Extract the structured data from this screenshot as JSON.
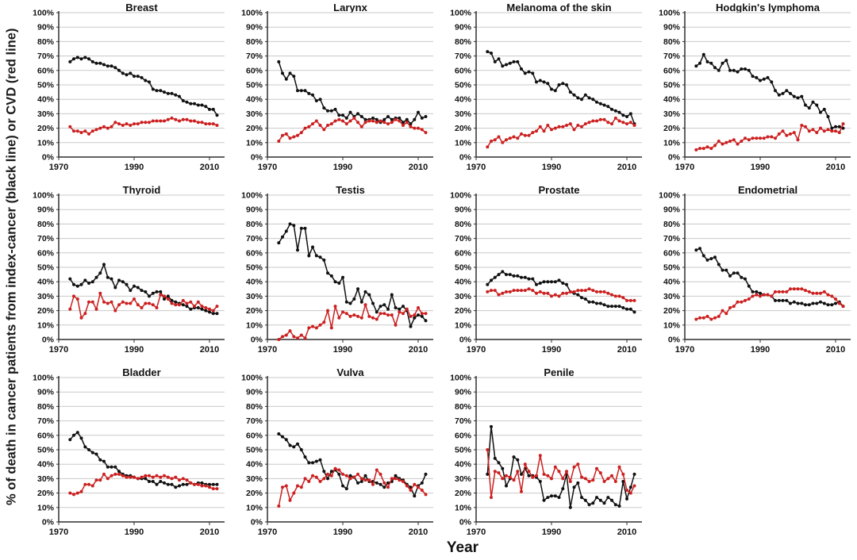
{
  "figure": {
    "ylabel": "% of death in cancer patients from index-cancer (black line) or CVD (red line)",
    "xlabel": "Year",
    "colors": {
      "index_cancer": "#111111",
      "cvd": "#cc2020",
      "grid": "#c9c9c9",
      "axis": "#2e2e2e"
    }
  },
  "axes": {
    "ylim": [
      0,
      100
    ],
    "ytick_step": 10,
    "ytick_labels": [
      "0%",
      "10%",
      "20%",
      "30%",
      "40%",
      "50%",
      "60%",
      "70%",
      "80%",
      "90%",
      "100%"
    ],
    "xlim": [
      1970,
      2014
    ],
    "xticks": [
      1970,
      1990,
      2010
    ],
    "grid": "horizontal"
  },
  "chart_data": [
    {
      "type": "line",
      "title": "Breast",
      "x_start": 1973,
      "x_step": 1,
      "series": [
        {
          "name": "index-cancer (black line)",
          "color": "black",
          "values": [
            66,
            68,
            69,
            68,
            69,
            68,
            66,
            65,
            65,
            64,
            63,
            63,
            62,
            60,
            58,
            57,
            58,
            56,
            56,
            55,
            53,
            52,
            47,
            46,
            46,
            45,
            44,
            44,
            43,
            42,
            39,
            38,
            37,
            37,
            36,
            36,
            35,
            33,
            33,
            29
          ]
        },
        {
          "name": "CVD (red line)",
          "color": "red",
          "values": [
            21,
            18,
            18,
            17,
            18,
            16,
            18,
            19,
            20,
            21,
            20,
            21,
            24,
            23,
            22,
            23,
            22,
            23,
            23,
            24,
            24,
            24,
            25,
            25,
            25,
            25,
            26,
            27,
            26,
            25,
            26,
            26,
            25,
            25,
            24,
            24,
            23,
            23,
            23,
            22
          ]
        }
      ]
    },
    {
      "type": "line",
      "title": "Larynx",
      "x_start": 1973,
      "x_step": 1,
      "series": [
        {
          "name": "index-cancer (black line)",
          "color": "black",
          "values": [
            66,
            58,
            54,
            58,
            56,
            46,
            46,
            46,
            44,
            43,
            39,
            40,
            34,
            32,
            32,
            33,
            29,
            29,
            27,
            31,
            28,
            30,
            28,
            26,
            26,
            27,
            26,
            24,
            26,
            28,
            26,
            27,
            27,
            24,
            26,
            23,
            26,
            31,
            27,
            28
          ]
        },
        {
          "name": "CVD (red line)",
          "color": "red",
          "values": [
            11,
            15,
            16,
            13,
            14,
            15,
            17,
            20,
            21,
            23,
            25,
            22,
            19,
            22,
            23,
            25,
            26,
            25,
            23,
            25,
            27,
            24,
            21,
            24,
            25,
            25,
            24,
            25,
            24,
            23,
            24,
            26,
            25,
            22,
            24,
            21,
            20,
            20,
            19,
            17
          ]
        }
      ]
    },
    {
      "type": "line",
      "title": "Melanoma of the skin",
      "x_start": 1973,
      "x_step": 1,
      "series": [
        {
          "name": "index-cancer (black line)",
          "color": "black",
          "values": [
            73,
            72,
            66,
            68,
            63,
            64,
            65,
            66,
            66,
            61,
            58,
            59,
            58,
            52,
            53,
            52,
            51,
            47,
            46,
            50,
            51,
            50,
            45,
            43,
            41,
            40,
            43,
            41,
            40,
            38,
            37,
            36,
            35,
            33,
            32,
            31,
            29,
            28,
            30,
            23
          ]
        },
        {
          "name": "CVD (red line)",
          "color": "red",
          "values": [
            7,
            11,
            12,
            14,
            10,
            12,
            13,
            14,
            13,
            16,
            15,
            15,
            17,
            18,
            21,
            18,
            22,
            19,
            20,
            21,
            21,
            22,
            23,
            19,
            22,
            21,
            23,
            24,
            25,
            25,
            26,
            26,
            24,
            23,
            27,
            25,
            24,
            23,
            24,
            22
          ]
        }
      ]
    },
    {
      "type": "line",
      "title": "Hodgkin's lymphoma",
      "x_start": 1973,
      "x_step": 1,
      "series": [
        {
          "name": "index-cancer (black line)",
          "color": "black",
          "values": [
            63,
            65,
            71,
            66,
            65,
            62,
            60,
            65,
            67,
            60,
            60,
            59,
            61,
            61,
            60,
            56,
            55,
            53,
            54,
            55,
            52,
            46,
            43,
            44,
            46,
            44,
            42,
            41,
            42,
            36,
            34,
            38,
            36,
            31,
            33,
            28,
            20,
            21,
            21,
            20
          ]
        },
        {
          "name": "CVD (red line)",
          "color": "red",
          "values": [
            5,
            6,
            6,
            7,
            6,
            8,
            11,
            9,
            10,
            11,
            12,
            9,
            11,
            13,
            12,
            13,
            13,
            13,
            13,
            14,
            14,
            13,
            16,
            18,
            15,
            16,
            17,
            12,
            22,
            21,
            18,
            19,
            17,
            20,
            18,
            19,
            18,
            18,
            17,
            23
          ]
        }
      ]
    },
    {
      "type": "line",
      "title": "Thyroid",
      "x_start": 1973,
      "x_step": 1,
      "series": [
        {
          "name": "index-cancer (black line)",
          "color": "black",
          "values": [
            42,
            38,
            37,
            38,
            41,
            39,
            40,
            43,
            46,
            52,
            43,
            42,
            36,
            41,
            40,
            38,
            34,
            37,
            36,
            34,
            33,
            30,
            32,
            33,
            33,
            28,
            30,
            27,
            26,
            25,
            24,
            23,
            21,
            22,
            22,
            21,
            20,
            19,
            18,
            18
          ]
        },
        {
          "name": "CVD (red line)",
          "color": "red",
          "values": [
            21,
            30,
            28,
            15,
            18,
            26,
            26,
            21,
            32,
            26,
            25,
            26,
            20,
            24,
            26,
            25,
            25,
            28,
            24,
            22,
            25,
            25,
            24,
            22,
            31,
            30,
            28,
            25,
            24,
            24,
            27,
            25,
            26,
            23,
            26,
            23,
            22,
            21,
            20,
            23
          ]
        }
      ]
    },
    {
      "type": "line",
      "title": "Testis",
      "x_start": 1973,
      "x_step": 1,
      "series": [
        {
          "name": "index-cancer (black line)",
          "color": "black",
          "values": [
            67,
            71,
            75,
            80,
            79,
            62,
            77,
            77,
            58,
            64,
            58,
            57,
            55,
            46,
            44,
            40,
            39,
            43,
            26,
            25,
            28,
            35,
            26,
            33,
            31,
            25,
            19,
            23,
            24,
            21,
            31,
            22,
            21,
            23,
            20,
            9,
            15,
            17,
            16,
            13
          ]
        },
        {
          "name": "CVD (red line)",
          "color": "red",
          "values": [
            0,
            2,
            3,
            6,
            2,
            1,
            3,
            1,
            8,
            9,
            8,
            10,
            12,
            20,
            8,
            23,
            15,
            19,
            18,
            16,
            17,
            16,
            15,
            24,
            16,
            15,
            14,
            18,
            18,
            17,
            17,
            10,
            19,
            18,
            21,
            16,
            17,
            22,
            18,
            18
          ]
        }
      ]
    },
    {
      "type": "line",
      "title": "Prostate",
      "x_start": 1973,
      "x_step": 1,
      "series": [
        {
          "name": "index-cancer (black line)",
          "color": "black",
          "values": [
            38,
            41,
            43,
            45,
            47,
            45,
            45,
            44,
            44,
            43,
            43,
            42,
            42,
            38,
            39,
            40,
            40,
            40,
            40,
            41,
            39,
            38,
            33,
            32,
            31,
            29,
            28,
            26,
            26,
            25,
            25,
            24,
            23,
            23,
            23,
            23,
            22,
            21,
            21,
            19
          ]
        },
        {
          "name": "CVD (red line)",
          "color": "red",
          "values": [
            33,
            34,
            34,
            31,
            32,
            33,
            33,
            34,
            34,
            34,
            34,
            35,
            34,
            32,
            33,
            32,
            32,
            30,
            31,
            30,
            32,
            32,
            33,
            33,
            34,
            34,
            34,
            35,
            34,
            33,
            33,
            33,
            32,
            31,
            30,
            30,
            29,
            27,
            27,
            27
          ]
        }
      ]
    },
    {
      "type": "line",
      "title": "Endometrial",
      "x_start": 1973,
      "x_step": 1,
      "series": [
        {
          "name": "index-cancer (black line)",
          "color": "black",
          "values": [
            62,
            63,
            58,
            55,
            56,
            57,
            52,
            48,
            48,
            44,
            46,
            46,
            43,
            42,
            37,
            33,
            33,
            32,
            31,
            31,
            30,
            27,
            27,
            27,
            27,
            25,
            26,
            25,
            25,
            24,
            24,
            25,
            25,
            26,
            25,
            24,
            24,
            25,
            26,
            23
          ]
        },
        {
          "name": "CVD (red line)",
          "color": "red",
          "values": [
            14,
            15,
            15,
            16,
            14,
            15,
            16,
            20,
            18,
            22,
            23,
            26,
            26,
            27,
            28,
            30,
            31,
            30,
            31,
            31,
            30,
            33,
            33,
            33,
            33,
            35,
            35,
            35,
            35,
            34,
            33,
            32,
            32,
            32,
            33,
            31,
            30,
            28,
            25,
            23
          ]
        }
      ]
    },
    {
      "type": "line",
      "title": "Bladder",
      "x_start": 1973,
      "x_step": 1,
      "series": [
        {
          "name": "index-cancer (black line)",
          "color": "black",
          "values": [
            57,
            60,
            62,
            58,
            52,
            50,
            48,
            47,
            43,
            42,
            38,
            38,
            38,
            35,
            33,
            32,
            32,
            31,
            30,
            30,
            30,
            28,
            28,
            26,
            28,
            27,
            26,
            26,
            24,
            25,
            26,
            26,
            27,
            26,
            27,
            27,
            26,
            26,
            26,
            26
          ]
        },
        {
          "name": "CVD (red line)",
          "color": "red",
          "values": [
            20,
            19,
            20,
            21,
            26,
            26,
            25,
            29,
            29,
            33,
            30,
            32,
            33,
            33,
            32,
            31,
            31,
            31,
            30,
            31,
            32,
            32,
            31,
            32,
            31,
            32,
            31,
            30,
            31,
            29,
            30,
            29,
            27,
            26,
            26,
            25,
            25,
            24,
            23,
            23
          ]
        }
      ]
    },
    {
      "type": "line",
      "title": "Vulva",
      "x_start": 1973,
      "x_step": 1,
      "series": [
        {
          "name": "index-cancer (black line)",
          "color": "black",
          "values": [
            61,
            59,
            57,
            53,
            52,
            54,
            50,
            45,
            41,
            41,
            42,
            43,
            35,
            30,
            35,
            36,
            33,
            25,
            23,
            32,
            31,
            27,
            28,
            32,
            28,
            28,
            27,
            26,
            24,
            27,
            28,
            32,
            30,
            29,
            26,
            24,
            18,
            25,
            27,
            33
          ]
        },
        {
          "name": "CVD (red line)",
          "color": "red",
          "values": [
            11,
            24,
            25,
            15,
            20,
            25,
            24,
            30,
            28,
            32,
            31,
            28,
            30,
            33,
            32,
            37,
            36,
            33,
            32,
            30,
            31,
            33,
            30,
            29,
            29,
            26,
            36,
            33,
            27,
            24,
            30,
            30,
            29,
            28,
            25,
            22,
            26,
            24,
            22,
            19
          ]
        }
      ]
    },
    {
      "type": "line",
      "title": "Penile",
      "x_start": 1973,
      "x_step": 1,
      "series": [
        {
          "name": "index-cancer (black line)",
          "color": "black",
          "values": [
            33,
            66,
            44,
            41,
            37,
            25,
            30,
            45,
            43,
            33,
            37,
            32,
            32,
            31,
            28,
            15,
            17,
            18,
            18,
            17,
            23,
            33,
            10,
            24,
            27,
            17,
            15,
            12,
            13,
            17,
            15,
            13,
            17,
            15,
            12,
            11,
            28,
            16,
            24,
            33
          ]
        },
        {
          "name": "CVD (red line)",
          "color": "red",
          "values": [
            50,
            17,
            35,
            34,
            30,
            32,
            31,
            29,
            35,
            21,
            40,
            35,
            31,
            32,
            46,
            33,
            32,
            30,
            38,
            35,
            30,
            35,
            28,
            38,
            40,
            31,
            30,
            28,
            29,
            37,
            34,
            28,
            30,
            32,
            28,
            38,
            33,
            22,
            20,
            25
          ]
        }
      ]
    }
  ]
}
